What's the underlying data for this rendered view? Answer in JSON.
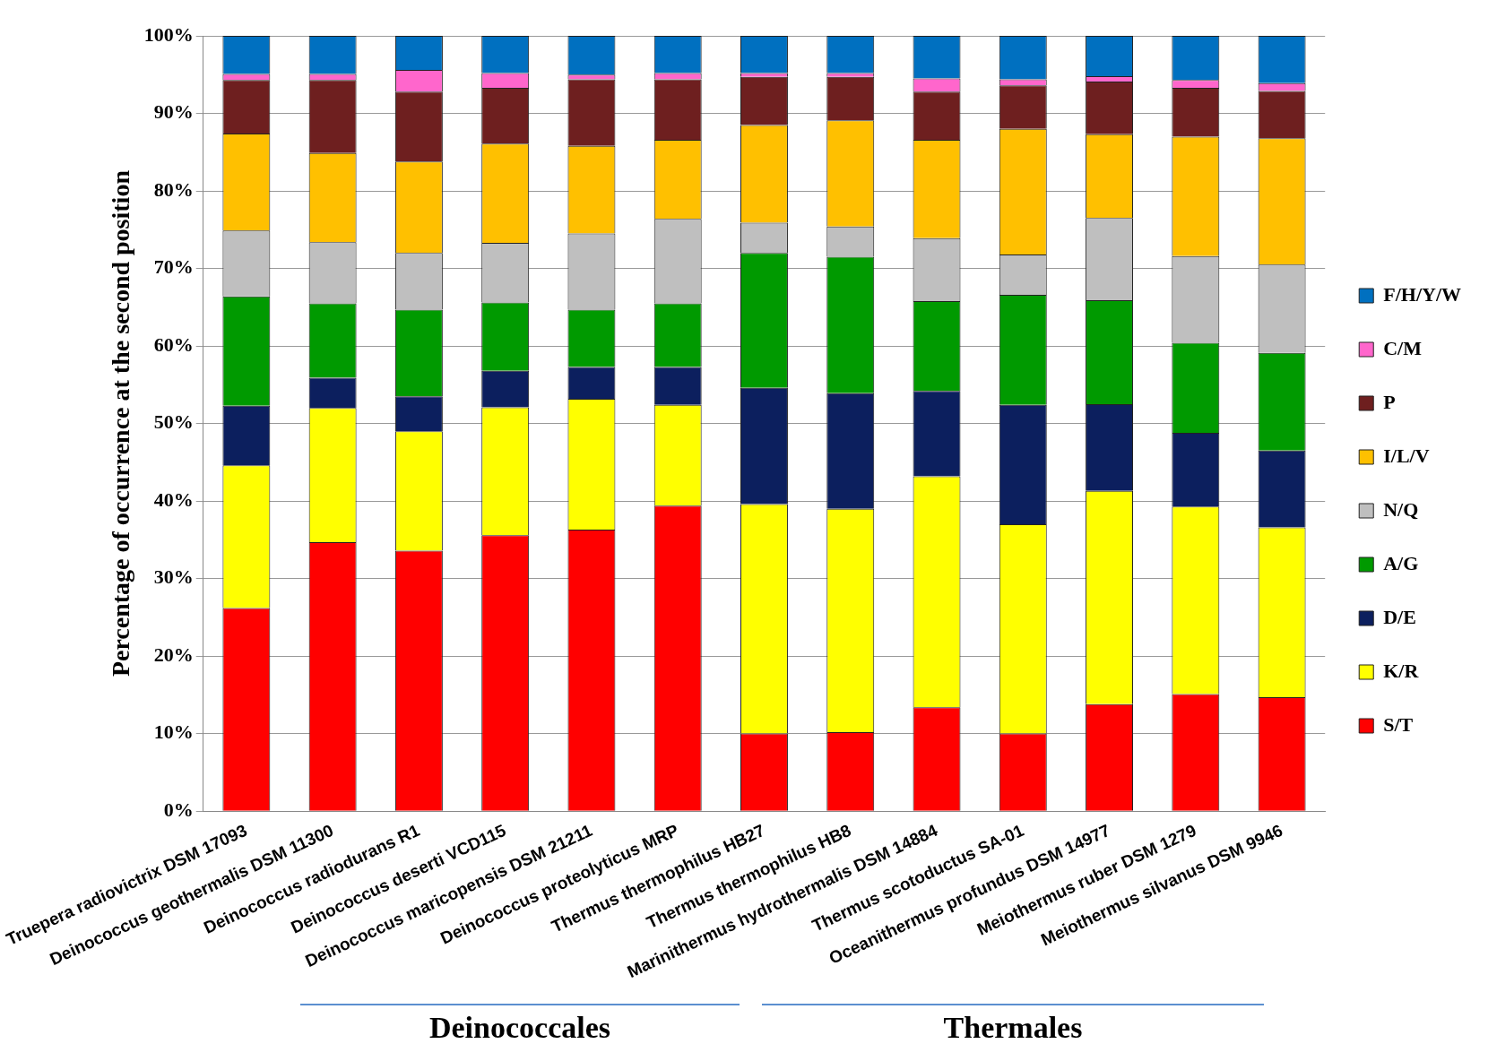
{
  "chart_data": {
    "type": "bar",
    "stacked": true,
    "ylabel": "Percentage of occurrence at the second position",
    "categories": [
      "Truepera radiovictrix DSM 17093",
      "Deinococcus geothermalis DSM 11300",
      "Deinococcus radiodurans R1",
      "Deinococcus deserti VCD115",
      "Deinococcus maricopensis DSM 21211",
      "Deinococcus proteolyticus MRP",
      "Thermus thermophilus HB27",
      "Thermus thermophilus HB8",
      "Marinithermus hydrothermalis DSM 14884",
      "Thermus scotoductus SA-01",
      "Oceanithermus profundus DSM 14977",
      "Meiothermus ruber DSM 1279",
      "Meiothermus silvanus DSM 9946"
    ],
    "series": [
      {
        "name": "S/T",
        "color": "#ff0000",
        "values": [
          26.2,
          34.7,
          33.6,
          35.6,
          36.3,
          39.4,
          10.0,
          10.2,
          13.4,
          10.0,
          13.8,
          15.1,
          14.7
        ]
      },
      {
        "name": "K/R",
        "color": "#ffff00",
        "values": [
          18.4,
          17.3,
          15.4,
          16.5,
          16.9,
          13.0,
          29.6,
          28.8,
          29.8,
          27.0,
          27.5,
          24.2,
          21.9
        ]
      },
      {
        "name": "D/E",
        "color": "#0c1f5e",
        "values": [
          7.7,
          3.9,
          4.5,
          4.7,
          4.1,
          4.9,
          15.0,
          14.9,
          11.0,
          15.4,
          11.2,
          9.5,
          9.9
        ]
      },
      {
        "name": "A/G",
        "color": "#009a00",
        "values": [
          14.1,
          9.6,
          11.2,
          8.8,
          7.4,
          8.2,
          17.4,
          17.6,
          11.6,
          14.2,
          13.4,
          11.6,
          12.6
        ]
      },
      {
        "name": "N/Q",
        "color": "#bfbfbf",
        "values": [
          8.5,
          7.9,
          7.3,
          7.7,
          9.8,
          10.9,
          3.9,
          3.9,
          8.1,
          5.2,
          10.6,
          11.2,
          11.4
        ]
      },
      {
        "name": "I/L/V",
        "color": "#ffc000",
        "values": [
          12.5,
          11.5,
          11.8,
          12.8,
          11.3,
          10.2,
          12.6,
          13.7,
          12.7,
          16.2,
          10.8,
          15.4,
          16.3
        ]
      },
      {
        "name": "P",
        "color": "#6e1f1f",
        "values": [
          6.9,
          9.4,
          9.0,
          7.2,
          8.6,
          7.8,
          6.2,
          5.6,
          6.2,
          5.6,
          6.8,
          6.3,
          6.1
        ]
      },
      {
        "name": "C/M",
        "color": "#ff66cc",
        "values": [
          0.8,
          0.8,
          2.8,
          1.9,
          0.6,
          0.8,
          0.5,
          0.5,
          1.7,
          0.8,
          0.7,
          1.0,
          1.0
        ]
      },
      {
        "name": "F/H/Y/W",
        "color": "#0070c0",
        "values": [
          4.9,
          4.9,
          4.4,
          4.8,
          5.0,
          4.8,
          4.8,
          4.8,
          5.5,
          5.6,
          5.2,
          5.7,
          6.1
        ]
      }
    ],
    "ylim": [
      0,
      100
    ],
    "yticks": [
      {
        "value": 0,
        "label": "0%"
      },
      {
        "value": 10,
        "label": "10%"
      },
      {
        "value": 20,
        "label": "20%"
      },
      {
        "value": 30,
        "label": "30%"
      },
      {
        "value": 40,
        "label": "40%"
      },
      {
        "value": 50,
        "label": "50%"
      },
      {
        "value": 60,
        "label": "60%"
      },
      {
        "value": 70,
        "label": "70%"
      },
      {
        "value": 80,
        "label": "80%"
      },
      {
        "value": 90,
        "label": "90%"
      },
      {
        "value": 100,
        "label": "100%"
      }
    ],
    "grid": "y",
    "legend": "right",
    "annotations": [
      "Deinococcales",
      "Thermales"
    ]
  }
}
